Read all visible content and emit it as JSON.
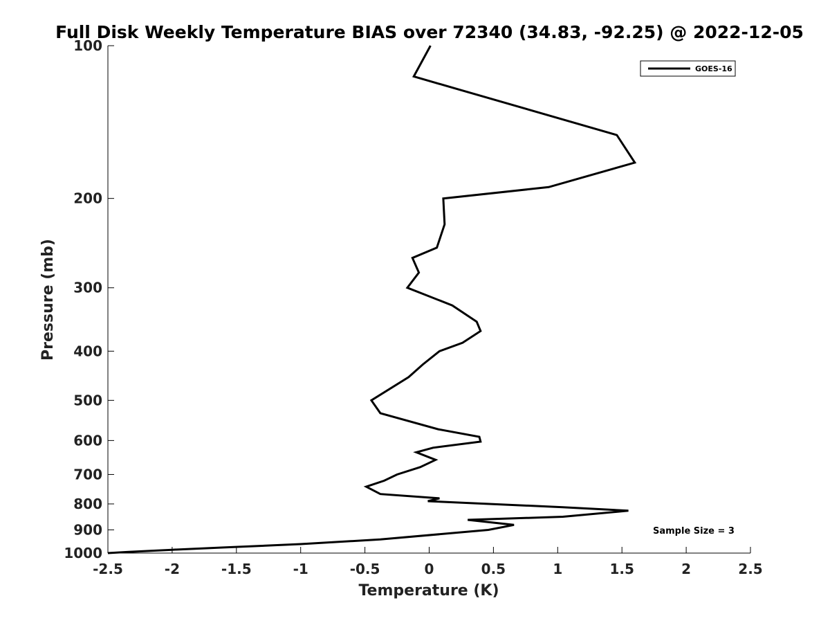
{
  "chart_data": {
    "type": "line",
    "title": "Full Disk Weekly Temperature BIAS over 72340 (34.83, -92.25) @ 2022-12-05",
    "xlabel": "Temperature (K)",
    "ylabel": "Pressure (mb)",
    "xlim": [
      -2.5,
      2.5
    ],
    "ylim": [
      1000,
      100
    ],
    "y_scale": "log",
    "y_reversed": true,
    "x_ticks": [
      -2.5,
      -2,
      -1.5,
      -1,
      -0.5,
      0,
      0.5,
      1,
      1.5,
      2,
      2.5
    ],
    "x_tick_labels": [
      "-2.5",
      "-2",
      "-1.5",
      "-1",
      "-0.5",
      "0",
      "0.5",
      "1",
      "1.5",
      "2",
      "2.5"
    ],
    "y_ticks": [
      100,
      200,
      300,
      400,
      500,
      600,
      700,
      800,
      900,
      1000
    ],
    "y_tick_labels": [
      "100",
      "200",
      "300",
      "400",
      "500",
      "600",
      "700",
      "800",
      "900",
      "1000"
    ],
    "grid": false,
    "legend": {
      "position": "top-right",
      "entries": [
        "GOES-16"
      ]
    },
    "annotation": "Sample Size = 3",
    "series": [
      {
        "name": "GOES-16",
        "color": "#000000",
        "points": [
          [
            0.01,
            100
          ],
          [
            -0.12,
            115
          ],
          [
            1.46,
            150
          ],
          [
            1.6,
            170
          ],
          [
            0.93,
            190
          ],
          [
            0.11,
            200
          ],
          [
            0.12,
            225
          ],
          [
            0.06,
            250
          ],
          [
            -0.13,
            262
          ],
          [
            -0.08,
            280
          ],
          [
            -0.17,
            300
          ],
          [
            0.18,
            325
          ],
          [
            0.37,
            350
          ],
          [
            0.4,
            365
          ],
          [
            0.26,
            385
          ],
          [
            0.08,
            400
          ],
          [
            -0.05,
            425
          ],
          [
            -0.16,
            450
          ],
          [
            -0.45,
            500
          ],
          [
            -0.38,
            530
          ],
          [
            0.07,
            570
          ],
          [
            0.39,
            590
          ],
          [
            0.4,
            603
          ],
          [
            0.03,
            620
          ],
          [
            -0.1,
            633
          ],
          [
            0.05,
            655
          ],
          [
            -0.07,
            677
          ],
          [
            -0.25,
            700
          ],
          [
            -0.35,
            720
          ],
          [
            -0.49,
            740
          ],
          [
            -0.38,
            765
          ],
          [
            0.08,
            780
          ],
          [
            -0.01,
            790
          ],
          [
            1.04,
            812
          ],
          [
            1.55,
            825
          ],
          [
            1.04,
            848
          ],
          [
            0.3,
            860
          ],
          [
            0.66,
            880
          ],
          [
            0.46,
            900
          ],
          [
            -0.38,
            940
          ],
          [
            -1.0,
            960
          ],
          [
            -1.6,
            975
          ],
          [
            -2.0,
            985
          ],
          [
            -2.35,
            995
          ],
          [
            -2.5,
            1000
          ]
        ]
      }
    ]
  }
}
